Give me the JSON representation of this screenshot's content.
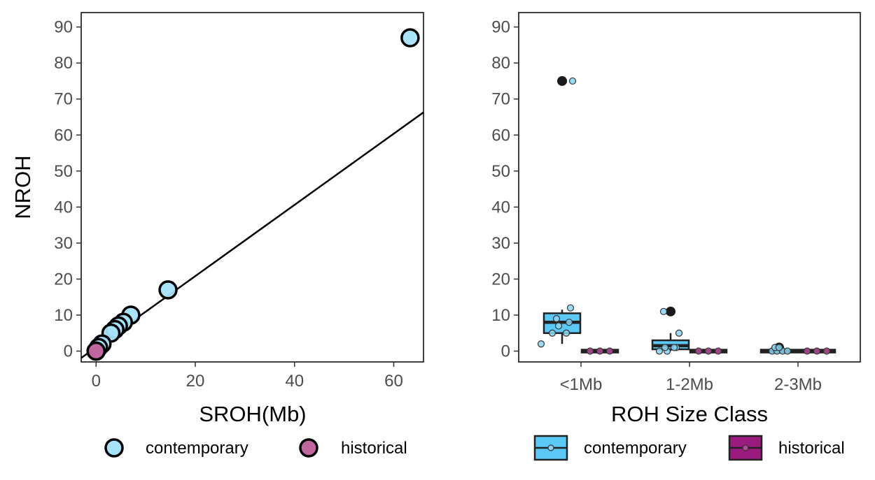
{
  "chart_data": [
    {
      "type": "scatter",
      "title": "",
      "xlabel": "SROH(Mb)",
      "ylabel": "NROH",
      "xlim": [
        -3,
        66
      ],
      "ylim": [
        -3,
        94
      ],
      "x_ticks": [
        0,
        20,
        40,
        60
      ],
      "y_ticks": [
        0,
        10,
        20,
        30,
        40,
        50,
        60,
        70,
        80,
        90
      ],
      "grid": false,
      "legend_position": "bottom",
      "series": [
        {
          "name": "contemporary",
          "color": "#a6e3fa",
          "points": [
            {
              "x": 63.3,
              "y": 87
            },
            {
              "x": 14.5,
              "y": 17
            },
            {
              "x": 7.0,
              "y": 10
            },
            {
              "x": 5.5,
              "y": 8
            },
            {
              "x": 4.5,
              "y": 7
            },
            {
              "x": 3.8,
              "y": 6
            },
            {
              "x": 3.0,
              "y": 5
            },
            {
              "x": 1.2,
              "y": 2
            },
            {
              "x": 0.5,
              "y": 1
            }
          ]
        },
        {
          "name": "historical",
          "color": "#c0679f",
          "points": [
            {
              "x": 0.0,
              "y": 0
            },
            {
              "x": 0.0,
              "y": 0
            },
            {
              "x": 0.0,
              "y": 0
            }
          ]
        }
      ],
      "regression_line": {
        "x": [
          -3,
          66
        ],
        "y": [
          -1.9,
          66.3
        ]
      }
    },
    {
      "type": "box",
      "title": "",
      "xlabel": "ROH Size Class",
      "ylabel": "",
      "categories": [
        "<1Mb",
        "1-2Mb",
        "2-3Mb"
      ],
      "ylim": [
        -3,
        94
      ],
      "y_ticks": [
        0,
        10,
        20,
        30,
        40,
        50,
        60,
        70,
        80,
        90
      ],
      "grid": false,
      "legend_position": "bottom",
      "series": [
        {
          "name": "contemporary",
          "fill": "#5bc8f5",
          "boxes": [
            {
              "category": "<1Mb",
              "q1": 5,
              "median": 8,
              "q3": 10.5,
              "whisker_low": 2,
              "whisker_high": 11.5,
              "outliers": [
                75
              ],
              "points": [
                2,
                5,
                5,
                7,
                8,
                9,
                12,
                75
              ]
            },
            {
              "category": "1-2Mb",
              "q1": 0.5,
              "median": 1.5,
              "q3": 3,
              "whisker_low": 0,
              "whisker_high": 5,
              "outliers": [
                11
              ],
              "points": [
                0,
                0,
                1,
                1,
                1,
                5,
                11
              ]
            },
            {
              "category": "2-3Mb",
              "q1": 0,
              "median": 0,
              "q3": 0,
              "whisker_low": 0,
              "whisker_high": 0,
              "outliers": [
                1
              ],
              "points": [
                0,
                0,
                0,
                0,
                1,
                1
              ]
            }
          ]
        },
        {
          "name": "historical",
          "fill": "#9b1a7d",
          "boxes": [
            {
              "category": "<1Mb",
              "q1": 0,
              "median": 0,
              "q3": 0,
              "whisker_low": 0,
              "whisker_high": 0,
              "outliers": [],
              "points": [
                0,
                0,
                0
              ]
            },
            {
              "category": "1-2Mb",
              "q1": 0,
              "median": 0,
              "q3": 0,
              "whisker_low": 0,
              "whisker_high": 0,
              "outliers": [],
              "points": [
                0,
                0,
                0
              ]
            },
            {
              "category": "2-3Mb",
              "q1": 0,
              "median": 0,
              "q3": 0,
              "whisker_low": 0,
              "whisker_high": 0,
              "outliers": [],
              "points": [
                0,
                0,
                0
              ]
            }
          ]
        }
      ]
    }
  ]
}
